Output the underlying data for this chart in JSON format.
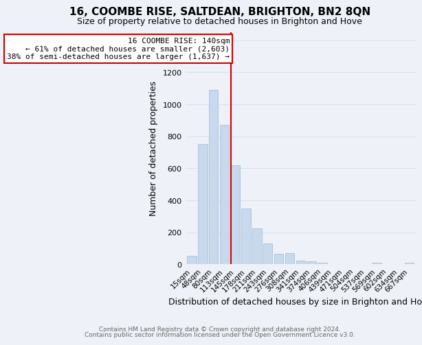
{
  "title": "16, COOMBE RISE, SALTDEAN, BRIGHTON, BN2 8QN",
  "subtitle": "Size of property relative to detached houses in Brighton and Hove",
  "xlabel": "Distribution of detached houses by size in Brighton and Hove",
  "ylabel": "Number of detached properties",
  "bar_labels": [
    "15sqm",
    "48sqm",
    "80sqm",
    "113sqm",
    "145sqm",
    "178sqm",
    "211sqm",
    "243sqm",
    "276sqm",
    "308sqm",
    "341sqm",
    "374sqm",
    "406sqm",
    "439sqm",
    "471sqm",
    "504sqm",
    "537sqm",
    "569sqm",
    "602sqm",
    "634sqm",
    "667sqm"
  ],
  "bar_values": [
    52,
    750,
    1090,
    870,
    620,
    350,
    225,
    130,
    65,
    70,
    25,
    18,
    10,
    2,
    0,
    0,
    0,
    10,
    0,
    0,
    10
  ],
  "bar_color": "#c8d9ed",
  "bar_edge_color": "#a0b8d0",
  "vline_index": 4,
  "vline_color": "#cc0000",
  "ylim": [
    0,
    1450
  ],
  "yticks": [
    0,
    200,
    400,
    600,
    800,
    1000,
    1200,
    1400
  ],
  "annotation_title": "16 COOMBE RISE: 140sqm",
  "annotation_line1": "← 61% of detached houses are smaller (2,603)",
  "annotation_line2": "38% of semi-detached houses are larger (1,637) →",
  "annotation_box_color": "#ffffff",
  "annotation_box_edge": "#cc0000",
  "footer1": "Contains HM Land Registry data © Crown copyright and database right 2024.",
  "footer2": "Contains public sector information licensed under the Open Government Licence v3.0.",
  "background_color": "#eef2f8",
  "grid_color": "#d8e4f0"
}
